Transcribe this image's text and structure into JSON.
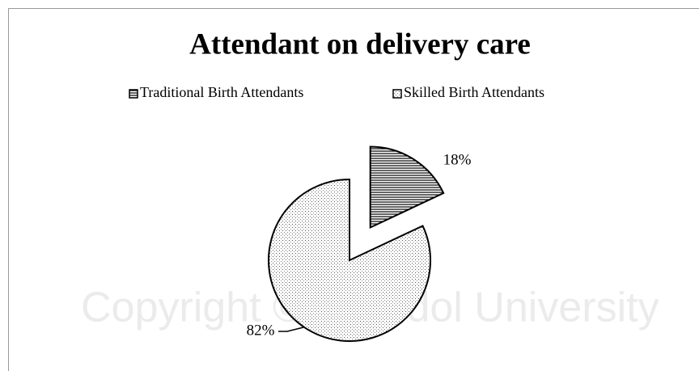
{
  "chart_data": {
    "type": "pie",
    "title": "Attendant on delivery care",
    "categories": [
      "Traditional Birth Attendants",
      "Skilled Birth Attendants"
    ],
    "values": [
      18,
      82
    ],
    "value_labels": [
      "18%",
      "82%"
    ],
    "patterns": [
      "horizontal-lines",
      "dots"
    ],
    "exploded": [
      true,
      false
    ],
    "color": "#000000",
    "legend": "top",
    "watermark": "Copyright © Mahidol University"
  }
}
